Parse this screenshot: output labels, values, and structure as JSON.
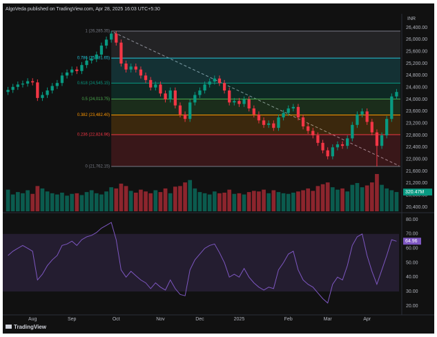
{
  "header": {
    "text": "AlgoVeda published on TradingView.com, Apr 28, 2025 16:03 UTC+5:30"
  },
  "footer": {
    "brand": "TradingView"
  },
  "chart_data": {
    "type": "candlestick",
    "currency": "INR",
    "colors": {
      "up": "#089981",
      "down": "#f23645"
    },
    "open": [
      24250,
      24320,
      24420,
      24500,
      24530,
      24610,
      24570,
      24050,
      24150,
      24300,
      24450,
      24550,
      24800,
      24900,
      25000,
      24950,
      25150,
      25300,
      25350,
      25500,
      25800,
      26000,
      26200,
      25900,
      25200,
      25000,
      25100,
      25000,
      24800,
      24650,
      24400,
      24500,
      24200,
      24000,
      24300,
      23800,
      23500,
      23350,
      23900,
      24150,
      24300,
      24500,
      24600,
      24700,
      24550,
      24300,
      23900,
      23950,
      23850,
      24000,
      23700,
      23500,
      23300,
      23150,
      23200,
      23050,
      23400,
      23550,
      23700,
      23750,
      23400,
      23100,
      22950,
      22800,
      22550,
      22300,
      22100,
      22400,
      22500,
      22450,
      22700,
      23150,
      23500,
      23600,
      23250,
      22900,
      22450,
      22800,
      23350,
      24100
    ],
    "high": [
      24420,
      24520,
      24600,
      24630,
      24710,
      24710,
      24670,
      24250,
      24400,
      24550,
      24650,
      24900,
      25000,
      25100,
      25100,
      25250,
      25400,
      25450,
      25600,
      25900,
      26100,
      26285,
      26280,
      26000,
      25300,
      25200,
      25200,
      25100,
      24900,
      24750,
      24600,
      24600,
      24300,
      24400,
      24400,
      23900,
      23600,
      24000,
      24250,
      24400,
      24600,
      24700,
      24800,
      24800,
      24650,
      24400,
      24050,
      24050,
      24100,
      24100,
      23800,
      23600,
      23400,
      23300,
      23300,
      23500,
      23650,
      23800,
      23850,
      23850,
      23500,
      23200,
      23050,
      22900,
      22650,
      22400,
      22500,
      22600,
      22600,
      22800,
      23250,
      23600,
      23700,
      23700,
      23350,
      23000,
      22900,
      23450,
      24200,
      24350
    ],
    "low": [
      24150,
      24220,
      24320,
      24400,
      24430,
      24470,
      23950,
      23950,
      24050,
      24200,
      24350,
      24450,
      24700,
      24800,
      24850,
      24850,
      25050,
      25200,
      25250,
      25400,
      25700,
      25900,
      25800,
      25100,
      24900,
      24900,
      24900,
      24700,
      24550,
      24300,
      24300,
      24100,
      23900,
      23900,
      23700,
      23400,
      23250,
      23250,
      23800,
      24050,
      24200,
      24400,
      24500,
      24450,
      24200,
      23800,
      23800,
      23750,
      23750,
      23600,
      23400,
      23200,
      23050,
      23050,
      22950,
      22950,
      23300,
      23450,
      23600,
      23300,
      23000,
      22850,
      22700,
      22450,
      22200,
      22000,
      22000,
      22300,
      22350,
      22350,
      22600,
      23050,
      23400,
      23150,
      22800,
      21762,
      22350,
      22700,
      23250,
      24000
    ],
    "close": [
      24320,
      24420,
      24500,
      24530,
      24610,
      24570,
      24050,
      24150,
      24300,
      24450,
      24550,
      24800,
      24900,
      25000,
      24950,
      25150,
      25300,
      25350,
      25500,
      25800,
      26000,
      26200,
      25900,
      25200,
      25000,
      25100,
      25000,
      24800,
      24650,
      24400,
      24500,
      24200,
      24000,
      24300,
      23800,
      23500,
      23350,
      23900,
      24150,
      24300,
      24500,
      24600,
      24700,
      24550,
      24300,
      23900,
      23950,
      23850,
      24000,
      23700,
      23500,
      23300,
      23150,
      23200,
      23050,
      23400,
      23550,
      23700,
      23750,
      23400,
      23100,
      22950,
      22800,
      22550,
      22300,
      22100,
      22400,
      22500,
      22450,
      22700,
      23150,
      23500,
      23600,
      23250,
      22900,
      22450,
      22800,
      23350,
      24100,
      24250
    ],
    "ylim": [
      20262,
      26862
    ],
    "yticks": [
      {
        "value": 26400,
        "label": "26,400.00"
      },
      {
        "value": 26000,
        "label": "26,000.00"
      },
      {
        "value": 25600,
        "label": "25,600.00"
      },
      {
        "value": 25200,
        "label": "25,200.00"
      },
      {
        "value": 24800,
        "label": "24,800.00"
      },
      {
        "value": 24400,
        "label": "24,400.00"
      },
      {
        "value": 24000,
        "label": "24,000.00"
      },
      {
        "value": 23600,
        "label": "23,600.00"
      },
      {
        "value": 23200,
        "label": "23,200.00"
      },
      {
        "value": 22800,
        "label": "22,800.00"
      },
      {
        "value": 22400,
        "label": "22,400.00"
      },
      {
        "value": 22000,
        "label": "22,000.00"
      },
      {
        "value": 21600,
        "label": "21,600.00"
      },
      {
        "value": 21200,
        "label": "21,200.00"
      },
      {
        "value": 20800,
        "label": "20,800.00"
      },
      {
        "value": 20400,
        "label": "20,400.00"
      }
    ],
    "xticks": [
      {
        "value": 5,
        "label": "Aug"
      },
      {
        "value": 13,
        "label": "Sep"
      },
      {
        "value": 22,
        "label": "Oct"
      },
      {
        "value": 31,
        "label": "Nov"
      },
      {
        "value": 39,
        "label": "Dec"
      },
      {
        "value": 47,
        "label": "2025"
      },
      {
        "value": 57,
        "label": "Feb"
      },
      {
        "value": 65,
        "label": "Mar"
      },
      {
        "value": 73,
        "label": "Apr"
      }
    ],
    "fib": {
      "start": 21,
      "levels": [
        {
          "value": 26285.35,
          "label": "1 (26,285.35)",
          "color": "#787b86"
        },
        {
          "value": 25381.65,
          "label": "0.786 (25,381.65)",
          "color": "#26c6da"
        },
        {
          "value": 24545.15,
          "label": "0.618 (24,545.15)",
          "color": "#089981"
        },
        {
          "value": 24013.75,
          "label": "0.5 (24,013.75)",
          "color": "#4caf50"
        },
        {
          "value": 23482.4,
          "label": "0.382 (23,482.40)",
          "color": "#ff9800"
        },
        {
          "value": 22824.96,
          "label": "0.236 (22,824.96)",
          "color": "#f23645"
        },
        {
          "value": 21762.15,
          "label": "0 (21,762.15)",
          "color": "#787b86"
        }
      ]
    },
    "volume": {
      "ylim": [
        0,
        700
      ],
      "values": [
        360,
        280,
        320,
        300,
        350,
        290,
        420,
        380,
        330,
        300,
        280,
        310,
        260,
        290,
        300,
        270,
        320,
        350,
        300,
        280,
        330,
        400,
        380,
        460,
        420,
        340,
        310,
        360,
        330,
        300,
        350,
        320,
        380,
        300,
        410,
        420,
        480,
        520,
        380,
        320,
        300,
        280,
        330,
        300,
        310,
        360,
        290,
        300,
        280,
        320,
        340,
        330,
        360,
        300,
        350,
        320,
        300,
        290,
        310,
        330,
        350,
        380,
        340,
        420,
        450,
        480,
        400,
        360,
        380,
        330,
        440,
        470,
        400,
        430,
        480,
        620,
        440,
        380,
        350,
        320.47
      ],
      "value_labels": [
        null,
        null,
        null,
        null,
        null,
        null,
        null,
        null,
        null,
        null,
        null,
        null,
        null,
        null,
        null,
        null,
        null,
        null,
        null,
        null,
        null,
        null,
        null,
        null,
        null,
        null,
        null,
        null,
        null,
        null,
        null,
        null,
        null,
        null,
        null,
        null,
        null,
        null,
        null,
        null,
        null,
        null,
        null,
        null,
        null,
        null,
        null,
        null,
        null,
        null,
        null,
        null,
        null,
        null,
        null,
        null,
        null,
        null,
        null,
        null,
        null,
        null,
        null,
        null,
        null,
        null,
        null,
        null,
        null,
        null,
        null,
        null,
        null,
        null,
        null,
        null,
        null,
        null,
        null,
        "320.47M"
      ]
    },
    "rsi": {
      "color": "#7e57c2",
      "ylim": [
        14.2,
        83.8
      ],
      "band": [
        30,
        70
      ],
      "yticks": [
        {
          "value": 80,
          "label": "80.00"
        },
        {
          "value": 70,
          "label": "70.00"
        },
        {
          "value": 60,
          "label": "60.00"
        },
        {
          "value": 50,
          "label": "50.00"
        },
        {
          "value": 40,
          "label": "40.00"
        },
        {
          "value": 30,
          "label": "30.00"
        },
        {
          "value": 20,
          "label": "20.00"
        }
      ],
      "values": [
        55,
        58,
        60,
        62,
        60,
        58,
        38,
        42,
        48,
        52,
        55,
        62,
        63,
        65,
        62,
        66,
        68,
        69,
        71,
        74,
        76,
        78,
        66,
        45,
        40,
        44,
        41,
        38,
        36,
        32,
        36,
        33,
        31,
        38,
        32,
        28,
        27,
        45,
        52,
        56,
        60,
        62,
        63,
        57,
        50,
        40,
        42,
        40,
        46,
        40,
        36,
        33,
        31,
        33,
        32,
        45,
        50,
        56,
        58,
        45,
        38,
        35,
        33,
        29,
        25,
        22,
        35,
        40,
        38,
        48,
        62,
        68,
        70,
        55,
        44,
        35,
        45,
        55,
        66,
        64.96
      ]
    }
  }
}
